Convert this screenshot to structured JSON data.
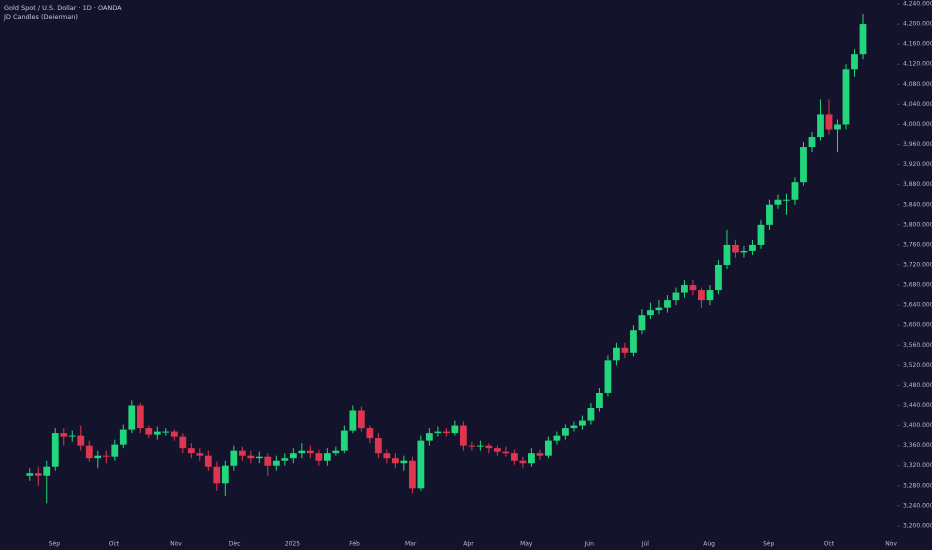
{
  "chart_data": {
    "type": "candlestick",
    "title": "Gold Spot / U.S. Dollar · 1D · OANDA",
    "subtitle": "JD Candles (Deierman)",
    "up_color": "#22d67c",
    "down_color": "#e0354f",
    "open": [
      3300,
      3305,
      3300,
      3318,
      3385,
      3378,
      3380,
      3360,
      3335,
      3340,
      3338,
      3362,
      3392,
      3440,
      3395,
      3382,
      3388,
      3388,
      3378,
      3355,
      3345,
      3340,
      3318,
      3285,
      3320,
      3350,
      3340,
      3335,
      3338,
      3320,
      3330,
      3335,
      3345,
      3350,
      3345,
      3330,
      3345,
      3350,
      3390,
      3430,
      3395,
      3375,
      3345,
      3335,
      3325,
      3330,
      3275,
      3370,
      3385,
      3388,
      3385,
      3400,
      3360,
      3358,
      3360,
      3355,
      3348,
      3345,
      3330,
      3325,
      3345,
      3340,
      3370,
      3380,
      3395,
      3400,
      3410,
      3435,
      3465,
      3530,
      3555,
      3545,
      3590,
      3620,
      3630,
      3635,
      3650,
      3665,
      3680,
      3670,
      3650,
      3670,
      3720,
      3760,
      3745,
      3748,
      3760,
      3800,
      3840,
      3850,
      3850,
      3885,
      3955,
      3975,
      4020,
      3990,
      4000,
      4110,
      4140
    ],
    "high": [
      3315,
      3318,
      3330,
      3395,
      3395,
      3390,
      3400,
      3370,
      3350,
      3350,
      3372,
      3402,
      3450,
      3445,
      3400,
      3398,
      3395,
      3392,
      3385,
      3365,
      3355,
      3350,
      3328,
      3330,
      3360,
      3358,
      3350,
      3348,
      3345,
      3340,
      3345,
      3355,
      3365,
      3360,
      3352,
      3355,
      3358,
      3400,
      3440,
      3438,
      3400,
      3385,
      3352,
      3345,
      3340,
      3338,
      3380,
      3395,
      3398,
      3395,
      3410,
      3408,
      3368,
      3370,
      3365,
      3360,
      3358,
      3352,
      3338,
      3355,
      3352,
      3378,
      3388,
      3402,
      3408,
      3420,
      3445,
      3475,
      3540,
      3565,
      3565,
      3600,
      3632,
      3645,
      3650,
      3660,
      3675,
      3690,
      3690,
      3675,
      3680,
      3730,
      3790,
      3770,
      3758,
      3770,
      3810,
      3850,
      3860,
      3862,
      3895,
      3965,
      3985,
      4050,
      4050,
      4010,
      4120,
      4150,
      4220
    ],
    "low": [
      3290,
      3280,
      3245,
      3310,
      3360,
      3368,
      3350,
      3328,
      3315,
      3325,
      3330,
      3355,
      3385,
      3385,
      3375,
      3372,
      3380,
      3370,
      3345,
      3335,
      3330,
      3310,
      3270,
      3260,
      3310,
      3330,
      3325,
      3325,
      3300,
      3310,
      3320,
      3325,
      3335,
      3335,
      3320,
      3320,
      3340,
      3345,
      3385,
      3388,
      3365,
      3335,
      3325,
      3315,
      3310,
      3265,
      3270,
      3360,
      3378,
      3378,
      3380,
      3350,
      3350,
      3350,
      3345,
      3340,
      3338,
      3322,
      3315,
      3318,
      3332,
      3335,
      3362,
      3372,
      3388,
      3392,
      3402,
      3428,
      3458,
      3520,
      3535,
      3538,
      3582,
      3612,
      3622,
      3625,
      3640,
      3655,
      3660,
      3635,
      3640,
      3662,
      3712,
      3735,
      3735,
      3740,
      3752,
      3790,
      3832,
      3820,
      3840,
      3878,
      3945,
      3968,
      3980,
      3945,
      3990,
      4095,
      4130
    ],
    "close": [
      3305,
      3300,
      3318,
      3385,
      3378,
      3380,
      3360,
      3335,
      3340,
      3338,
      3362,
      3392,
      3440,
      3395,
      3382,
      3388,
      3388,
      3378,
      3355,
      3345,
      3340,
      3318,
      3285,
      3320,
      3350,
      3340,
      3335,
      3338,
      3320,
      3330,
      3335,
      3345,
      3350,
      3345,
      3330,
      3345,
      3350,
      3390,
      3430,
      3395,
      3375,
      3345,
      3335,
      3325,
      3330,
      3275,
      3370,
      3385,
      3388,
      3385,
      3400,
      3360,
      3358,
      3360,
      3355,
      3348,
      3345,
      3330,
      3325,
      3345,
      3340,
      3370,
      3380,
      3395,
      3400,
      3410,
      3435,
      3465,
      3530,
      3555,
      3545,
      3590,
      3620,
      3630,
      3635,
      3650,
      3665,
      3680,
      3670,
      3650,
      3670,
      3720,
      3760,
      3745,
      3748,
      3760,
      3800,
      3840,
      3850,
      3850,
      3885,
      3955,
      3975,
      4020,
      3990,
      4000,
      4110,
      4140,
      4200
    ],
    "xlim": [
      -3.5,
      102
    ],
    "xticks": [
      {
        "value": 2.9,
        "label": "Sep"
      },
      {
        "value": 9.9,
        "label": "Oct"
      },
      {
        "value": 17.2,
        "label": "Nov"
      },
      {
        "value": 24.1,
        "label": "Dec"
      },
      {
        "value": 30.9,
        "label": "2025"
      },
      {
        "value": 38.2,
        "label": "Feb"
      },
      {
        "value": 44.8,
        "label": "Mar"
      },
      {
        "value": 51.6,
        "label": "Apr"
      },
      {
        "value": 58.4,
        "label": "May"
      },
      {
        "value": 65.8,
        "label": "Jun"
      },
      {
        "value": 72.4,
        "label": "Jul"
      },
      {
        "value": 79.9,
        "label": "Aug"
      },
      {
        "value": 86.9,
        "label": "Sep"
      },
      {
        "value": 94,
        "label": "Oct"
      },
      {
        "value": 101.3,
        "label": "Nov"
      }
    ],
    "ylim": [
      3172,
      4248
    ],
    "yticks": [
      {
        "value": 3200,
        "label": "3,200.000"
      },
      {
        "value": 3240,
        "label": "3,240.000"
      },
      {
        "value": 3280,
        "label": "3,280.000"
      },
      {
        "value": 3320,
        "label": "3,320.000"
      },
      {
        "value": 3360,
        "label": "3,360.000"
      },
      {
        "value": 3400,
        "label": "3,400.000"
      },
      {
        "value": 3440,
        "label": "3,440.000"
      },
      {
        "value": 3480,
        "label": "3,480.000"
      },
      {
        "value": 3520,
        "label": "3,520.000"
      },
      {
        "value": 3560,
        "label": "3,560.000"
      },
      {
        "value": 3600,
        "label": "3,600.000"
      },
      {
        "value": 3640,
        "label": "3,640.000"
      },
      {
        "value": 3680,
        "label": "3,680.000"
      },
      {
        "value": 3720,
        "label": "3,720.000"
      },
      {
        "value": 3760,
        "label": "3,760.000"
      },
      {
        "value": 3800,
        "label": "3,800.000"
      },
      {
        "value": 3840,
        "label": "3,840.000"
      },
      {
        "value": 3880,
        "label": "3,880.000"
      },
      {
        "value": 3920,
        "label": "3,920.000"
      },
      {
        "value": 3960,
        "label": "3,960.000"
      },
      {
        "value": 4000,
        "label": "4,000.000"
      },
      {
        "value": 4040,
        "label": "4,040.000"
      },
      {
        "value": 4080,
        "label": "4,080.000"
      },
      {
        "value": 4120,
        "label": "4,120.000"
      },
      {
        "value": 4160,
        "label": "4,160.000"
      },
      {
        "value": 4200,
        "label": "4,200.000"
      },
      {
        "value": 4240,
        "label": "4,240.000"
      }
    ]
  }
}
